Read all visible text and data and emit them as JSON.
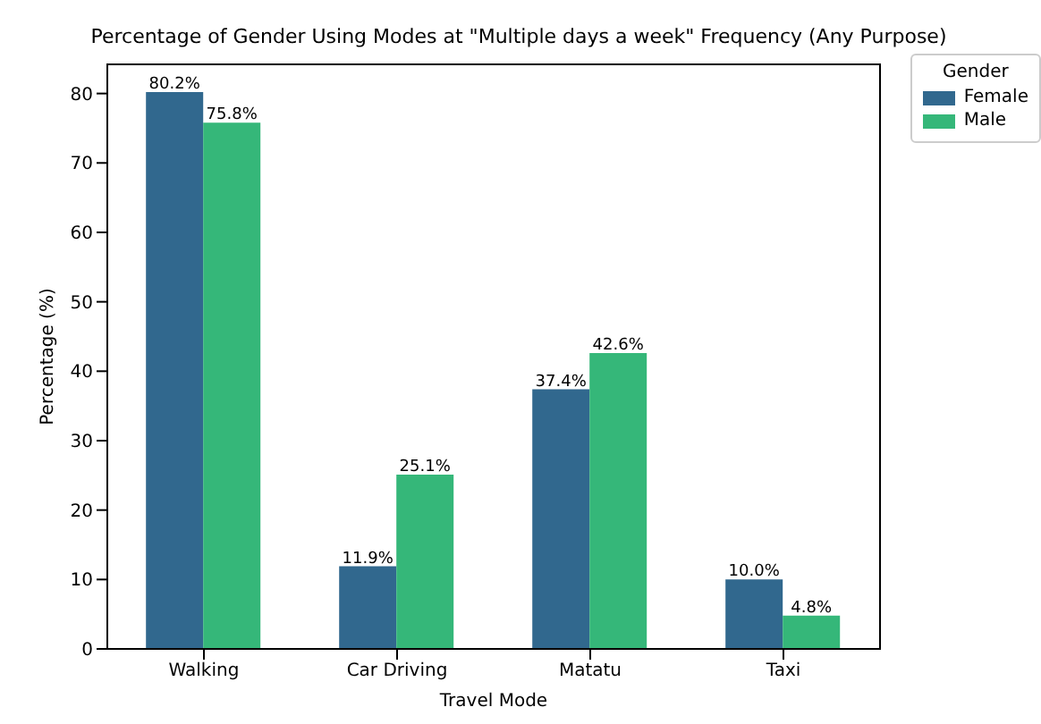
{
  "chart_data": {
    "type": "bar",
    "title": "Percentage of Gender Using Modes at \"Multiple days a week\" Frequency (Any Purpose)",
    "xlabel": "Travel Mode",
    "ylabel": "Percentage (%)",
    "legend_title": "Gender",
    "categories": [
      "Walking",
      "Car Driving",
      "Matatu",
      "Taxi"
    ],
    "series": [
      {
        "name": "Female",
        "color": "#31688e",
        "values": [
          80.2,
          11.9,
          37.4,
          10.0
        ],
        "value_labels": [
          "80.2%",
          "11.9%",
          "37.4%",
          "10.0%"
        ]
      },
      {
        "name": "Male",
        "color": "#35b779",
        "values": [
          75.8,
          25.1,
          42.6,
          4.8
        ],
        "value_labels": [
          "75.8%",
          "25.1%",
          "42.6%",
          "4.8%"
        ]
      }
    ],
    "ylim": [
      0,
      84.2
    ],
    "yticks": [
      0,
      10,
      20,
      30,
      40,
      50,
      60,
      70,
      80
    ],
    "legend": "top right"
  }
}
